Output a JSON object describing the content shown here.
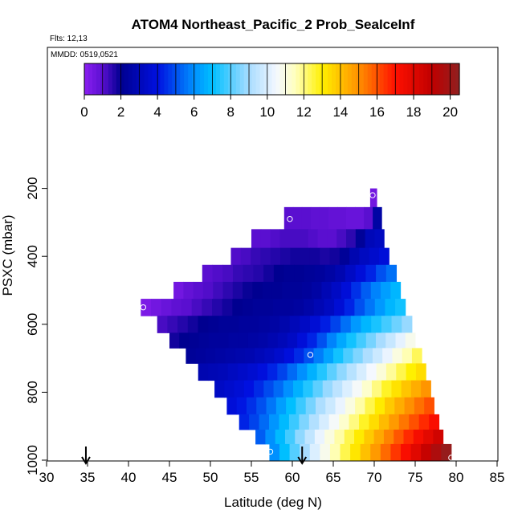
{
  "header": {
    "title": "ATOM4 Northeast_Pacific_2 Prob_SeaIceInf",
    "flights": "Flts: 12,13",
    "dates": "MMDD: 0519,0521"
  },
  "chart_data": {
    "type": "heatmap",
    "title": "ATOM4 Northeast_Pacific_2 Prob_SeaIceInf",
    "xlabel": "Latitude (deg N)",
    "ylabel": "PSXC (mbar)",
    "xlim": [
      30,
      85
    ],
    "ylim": [
      1000,
      0
    ],
    "x_ticks": [
      30,
      35,
      40,
      45,
      50,
      55,
      60,
      65,
      70,
      75,
      80,
      85
    ],
    "y_ticks": [
      200,
      400,
      600,
      800,
      1000
    ],
    "colorbar": {
      "range": [
        0,
        20.5
      ],
      "ticks": [
        0,
        2,
        4,
        6,
        8,
        10,
        12,
        14,
        16,
        18,
        20
      ],
      "stops": [
        {
          "v": 0,
          "c": "#8a1ff0"
        },
        {
          "v": 1,
          "c": "#5a0fd0"
        },
        {
          "v": 2,
          "c": "#000090"
        },
        {
          "v": 4,
          "c": "#0010e0"
        },
        {
          "v": 6,
          "c": "#0090ff"
        },
        {
          "v": 7,
          "c": "#00bfff"
        },
        {
          "v": 9,
          "c": "#a8dcff"
        },
        {
          "v": 10.5,
          "c": "#f4f8ff"
        },
        {
          "v": 11.5,
          "c": "#ffffc0"
        },
        {
          "v": 13,
          "c": "#fff000"
        },
        {
          "v": 15,
          "c": "#ff9000"
        },
        {
          "v": 17,
          "c": "#ff1000"
        },
        {
          "v": 19,
          "c": "#c00000"
        },
        {
          "v": 20.5,
          "c": "#902020"
        }
      ]
    },
    "pressure_levels": [
      220,
      290,
      350,
      400,
      450,
      500,
      550,
      600,
      650,
      690,
      740,
      790,
      840,
      890,
      930,
      975
    ],
    "rows": [
      {
        "p": 220,
        "lat_start": 69.5,
        "lat_end": 70.3,
        "values": [
          0.5
        ]
      },
      {
        "p": 290,
        "lat_start": 59.0,
        "lat_end": 70.9,
        "values": [
          1.0,
          1.0,
          1.0,
          0.9,
          0.9,
          0.8,
          0.8,
          0.7,
          0.7,
          1.0,
          2.5
        ]
      },
      {
        "p": 350,
        "lat_start": 55.0,
        "lat_end": 71.2,
        "values": [
          1.0,
          1.0,
          1.1,
          1.2,
          1.2,
          1.2,
          1.1,
          1.0,
          1.0,
          1.2,
          1.5,
          2.2,
          3.0,
          3.2
        ]
      },
      {
        "p": 400,
        "lat_start": 52.5,
        "lat_end": 71.8,
        "values": [
          1.1,
          1.2,
          1.4,
          1.5,
          1.6,
          1.7,
          1.8,
          1.8,
          1.8,
          1.7,
          1.8,
          2.2,
          2.8,
          3.2,
          3.5,
          3.8
        ]
      },
      {
        "p": 450,
        "lat_start": 49.0,
        "lat_end": 72.7,
        "values": [
          1.0,
          1.1,
          1.2,
          1.4,
          1.5,
          1.6,
          1.8,
          2.0,
          2.1,
          2.1,
          2.2,
          2.3,
          2.5,
          2.8,
          3.3,
          3.8,
          4.3,
          5.0,
          5.5
        ]
      },
      {
        "p": 500,
        "lat_start": 45.5,
        "lat_end": 73.2,
        "values": [
          0.5,
          0.8,
          1.0,
          1.1,
          1.3,
          1.5,
          1.7,
          1.9,
          2.0,
          2.1,
          2.1,
          2.2,
          2.2,
          2.3,
          2.5,
          2.9,
          3.3,
          3.8,
          4.5,
          5.2,
          5.8,
          6.3,
          6.8
        ]
      },
      {
        "p": 550,
        "lat_start": 41.5,
        "lat_end": 73.8,
        "values": [
          0.3,
          0.5,
          0.7,
          0.9,
          1.0,
          1.2,
          1.4,
          1.6,
          1.8,
          2.0,
          2.1,
          2.2,
          2.2,
          2.3,
          2.3,
          2.4,
          2.6,
          2.9,
          3.2,
          3.7,
          4.3,
          5.0,
          5.6,
          6.2,
          6.8,
          7.2
        ]
      },
      {
        "p": 600,
        "lat_start": 43.5,
        "lat_end": 74.6,
        "values": [
          1.2,
          1.4,
          1.6,
          1.8,
          2.0,
          2.1,
          2.2,
          2.2,
          2.3,
          2.3,
          2.4,
          2.5,
          2.7,
          3.0,
          3.3,
          3.7,
          4.2,
          4.8,
          5.5,
          6.2,
          6.8,
          7.3,
          7.8,
          8.3,
          8.8
        ]
      },
      {
        "p": 650,
        "lat_start": 45.0,
        "lat_end": 75.0,
        "values": [
          1.8,
          2.0,
          2.1,
          2.2,
          2.3,
          2.3,
          2.4,
          2.4,
          2.5,
          2.6,
          2.8,
          3.0,
          3.3,
          3.8,
          4.3,
          5.0,
          5.8,
          6.5,
          7.2,
          7.8,
          8.4,
          9.0,
          9.6,
          10.2,
          10.8
        ]
      },
      {
        "p": 690,
        "lat_start": 47.0,
        "lat_end": 75.8,
        "values": [
          2.2,
          2.3,
          2.4,
          2.5,
          2.6,
          2.7,
          2.8,
          3.0,
          3.2,
          3.5,
          3.9,
          4.4,
          5.0,
          5.7,
          6.4,
          7.2,
          7.9,
          8.5,
          9.1,
          9.7,
          10.3,
          11.0,
          11.6,
          12.3
        ]
      },
      {
        "p": 740,
        "lat_start": 48.5,
        "lat_end": 76.3,
        "values": [
          2.8,
          2.9,
          3.0,
          3.2,
          3.4,
          3.6,
          3.9,
          4.3,
          4.8,
          5.4,
          6.0,
          6.7,
          7.4,
          8.1,
          8.7,
          9.3,
          9.9,
          10.5,
          11.1,
          11.8,
          12.4,
          13.0,
          13.4
        ]
      },
      {
        "p": 790,
        "lat_start": 50.5,
        "lat_end": 76.9,
        "values": [
          3.3,
          3.5,
          3.7,
          4.0,
          4.4,
          4.9,
          5.4,
          6.0,
          6.7,
          7.4,
          8.1,
          8.8,
          9.4,
          10.0,
          10.6,
          11.3,
          12.0,
          12.7,
          13.3,
          13.9,
          14.4,
          14.9
        ]
      },
      {
        "p": 840,
        "lat_start": 52.0,
        "lat_end": 77.3,
        "values": [
          3.8,
          4.1,
          4.5,
          5.0,
          5.6,
          6.3,
          7.0,
          7.7,
          8.4,
          9.1,
          9.7,
          10.3,
          11.0,
          11.7,
          12.4,
          13.1,
          13.8,
          14.4,
          15.0,
          15.5,
          16.0
        ]
      },
      {
        "p": 890,
        "lat_start": 53.5,
        "lat_end": 77.9,
        "values": [
          4.3,
          4.8,
          5.4,
          6.1,
          6.9,
          7.7,
          8.5,
          9.2,
          9.9,
          10.6,
          11.3,
          12.0,
          12.7,
          13.4,
          14.1,
          14.8,
          15.4,
          16.0,
          16.6,
          17.2
        ]
      },
      {
        "p": 930,
        "lat_start": 55.5,
        "lat_end": 78.4,
        "values": [
          5.2,
          6.0,
          6.9,
          7.8,
          8.7,
          9.5,
          10.3,
          11.0,
          11.7,
          12.4,
          13.1,
          13.8,
          14.5,
          15.2,
          15.9,
          16.6,
          17.3,
          17.9,
          18.5
        ]
      },
      {
        "p": 975,
        "lat_start": 57.2,
        "lat_end": 79.4,
        "values": [
          6.0,
          7.0,
          8.0,
          9.0,
          10.0,
          10.8,
          11.6,
          12.4,
          13.2,
          14.0,
          14.8,
          15.6,
          16.4,
          17.2,
          18.0,
          18.8,
          19.6,
          20.3
        ]
      }
    ],
    "markers": [
      {
        "lat": 69.8,
        "p": 220
      },
      {
        "lat": 59.7,
        "p": 290
      },
      {
        "lat": 41.8,
        "p": 550
      },
      {
        "lat": 62.2,
        "p": 690
      },
      {
        "lat": 57.3,
        "p": 975
      },
      {
        "lat": 79.4,
        "p": 1000
      }
    ],
    "arrows": [
      {
        "lat": 34.8
      },
      {
        "lat": 61.2
      }
    ]
  }
}
